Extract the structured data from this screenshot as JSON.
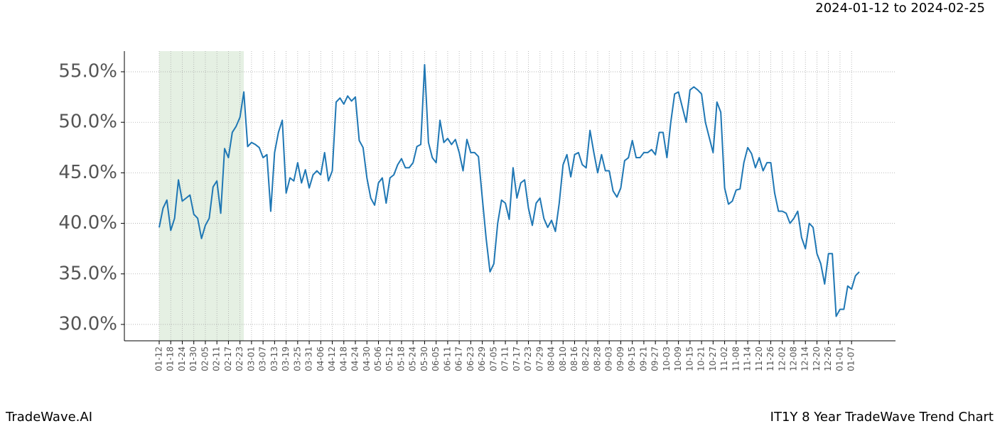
{
  "chart_data": {
    "type": "line",
    "title": "IT1Y 8 Year TradeWave Trend Chart",
    "subtitle": "2024-01-12 to 2024-02-25",
    "source": "TradeWave.AI",
    "categories": [
      "01-12",
      null,
      null,
      "01-18",
      null,
      null,
      "01-24",
      null,
      null,
      "01-30",
      null,
      null,
      "02-05",
      null,
      null,
      "02-11",
      null,
      null,
      "02-17",
      null,
      null,
      "02-23",
      null,
      null,
      "03-01",
      null,
      null,
      "03-07",
      null,
      null,
      "03-13",
      null,
      null,
      "03-19",
      null,
      null,
      "03-25",
      null,
      null,
      "03-31",
      null,
      null,
      "04-06",
      null,
      null,
      "04-12",
      null,
      null,
      "04-18",
      null,
      null,
      "04-24",
      null,
      null,
      "04-30",
      null,
      null,
      "05-06",
      null,
      null,
      "05-12",
      null,
      null,
      "05-18",
      null,
      null,
      "05-24",
      null,
      null,
      "05-30",
      null,
      null,
      "06-05",
      null,
      null,
      "06-11",
      null,
      null,
      "06-17",
      null,
      null,
      "06-23",
      null,
      null,
      "06-29",
      null,
      null,
      "07-05",
      null,
      null,
      "07-11",
      null,
      null,
      "07-17",
      null,
      null,
      "07-23",
      null,
      null,
      "07-29",
      null,
      null,
      "08-04",
      null,
      null,
      "08-10",
      null,
      null,
      "08-16",
      null,
      null,
      "08-22",
      null,
      null,
      "08-28",
      null,
      null,
      "09-03",
      null,
      null,
      "09-09",
      null,
      null,
      "09-15",
      null,
      null,
      "09-21",
      null,
      null,
      "09-27",
      null,
      null,
      "10-03",
      null,
      null,
      "10-09",
      null,
      null,
      "10-15",
      null,
      null,
      "10-21",
      null,
      null,
      "10-27",
      null,
      null,
      "11-02",
      null,
      null,
      "11-08",
      null,
      null,
      "11-14",
      null,
      null,
      "11-20",
      null,
      null,
      "11-26",
      null,
      null,
      "12-02",
      null,
      null,
      "12-08",
      null,
      null,
      "12-14",
      null,
      null,
      "12-20",
      null,
      null,
      "12-26",
      null,
      null,
      "01-01",
      null,
      null,
      "01-07",
      null,
      null
    ],
    "series": [
      {
        "name": "IT1Y",
        "color": "#1f77b4",
        "values": [
          39.6,
          41.5,
          42.3,
          39.3,
          40.5,
          44.3,
          42.2,
          42.5,
          42.8,
          40.9,
          40.5,
          38.5,
          39.8,
          40.5,
          43.6,
          44.2,
          41,
          47.4,
          46.5,
          49,
          49.6,
          50.5,
          53,
          47.6,
          48,
          47.8,
          47.5,
          46.5,
          46.8,
          41.2,
          47,
          49,
          50.2,
          43,
          44.5,
          44.2,
          46,
          44,
          45.3,
          43.5,
          44.8,
          45.2,
          44.8,
          47,
          44.2,
          45.2,
          52,
          52.4,
          51.8,
          52.6,
          52.1,
          52.5,
          48.2,
          47.5,
          44.5,
          42.5,
          41.8,
          44,
          44.5,
          42,
          44.5,
          44.8,
          45.8,
          46.4,
          45.5,
          45.5,
          46,
          47.6,
          47.8,
          55.7,
          48,
          46.5,
          46,
          50.2,
          48,
          48.4,
          47.8,
          48.3,
          47,
          45.2,
          48.3,
          47,
          47,
          46.6,
          42.5,
          38.5,
          35.2,
          36,
          40,
          42.3,
          42,
          40.4,
          45.5,
          42.5,
          44,
          44.3,
          41.5,
          39.8,
          42,
          42.5,
          40.5,
          39.6,
          40.3,
          39.2,
          42,
          45.8,
          46.8,
          44.6,
          46.8,
          47,
          45.8,
          45.5,
          49.2,
          47,
          45,
          46.8,
          45.2,
          45.2,
          43.2,
          42.6,
          43.5,
          46.2,
          46.5,
          48.2,
          46.5,
          46.5,
          47,
          47,
          47.3,
          46.8,
          49,
          49,
          46.5,
          50,
          52.8,
          53,
          51.5,
          50,
          53.2,
          53.5,
          53.2,
          52.8,
          50,
          48.5,
          47,
          52,
          51,
          43.5,
          41.9,
          42.2,
          43.3,
          43.4,
          46,
          47.5,
          46.9,
          45.5,
          46.5,
          45.2,
          46,
          46,
          43,
          41.2,
          41.2,
          41,
          40,
          40.5,
          41.2,
          38.6,
          37.5,
          40,
          39.6,
          37,
          36,
          34,
          37,
          37,
          30.8,
          31.5,
          31.5,
          33.8,
          33.5,
          34.8,
          35.2
        ]
      }
    ],
    "ylim": [
      28.38,
      57.04
    ],
    "yticks": [
      {
        "value": 30,
        "label": "30.0%"
      },
      {
        "value": 35,
        "label": "35.0%"
      },
      {
        "value": 40,
        "label": "40.0%"
      },
      {
        "value": 45,
        "label": "45.0%"
      },
      {
        "value": 50,
        "label": "50.0%"
      },
      {
        "value": 55,
        "label": "55.0%"
      }
    ],
    "grid": true,
    "highlight": {
      "start": 0,
      "end": 22,
      "color": "#e5f0e3"
    }
  }
}
